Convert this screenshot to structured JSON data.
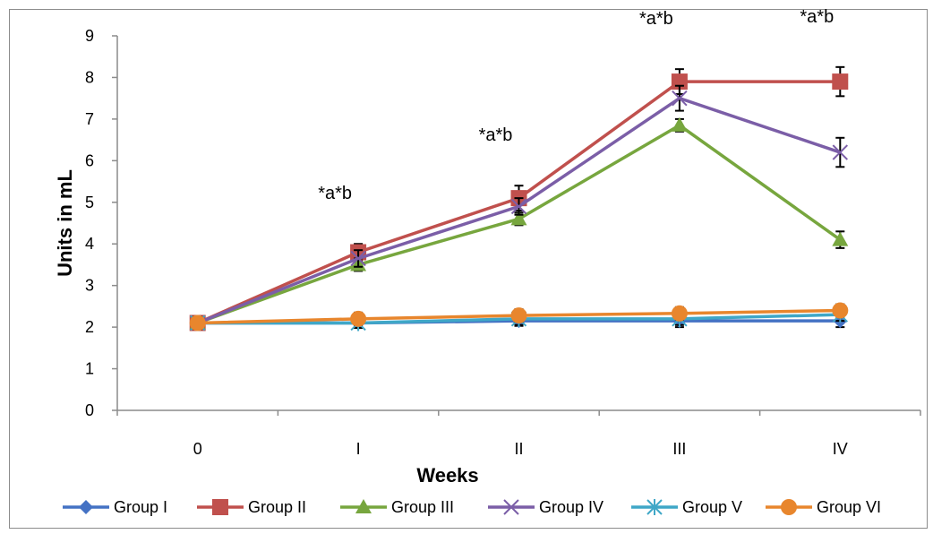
{
  "chart_data": {
    "type": "line",
    "categories": [
      "0",
      "I",
      "II",
      "III",
      "IV"
    ],
    "xlabel": "Weeks",
    "ylabel": "Units in mL",
    "ylim": [
      0,
      9
    ],
    "yticks": [
      "0",
      "1",
      "2",
      "3",
      "4",
      "5",
      "6",
      "7",
      "8",
      "9"
    ],
    "grid": false,
    "legend_position": "bottom",
    "series": [
      {
        "name": "Group I",
        "color": "#4472c4",
        "marker": "diamond",
        "values": [
          2.1,
          2.1,
          2.15,
          2.15,
          2.15
        ],
        "errors": [
          0.15,
          0.1,
          0.12,
          0.15,
          0.15
        ]
      },
      {
        "name": "Group II",
        "color": "#c0504d",
        "marker": "square",
        "values": [
          2.1,
          3.8,
          5.1,
          7.9,
          7.9
        ],
        "errors": [
          0.15,
          0.2,
          0.3,
          0.3,
          0.35
        ]
      },
      {
        "name": "Group III",
        "color": "#77a63e",
        "marker": "triangle",
        "values": [
          2.1,
          3.5,
          4.6,
          6.85,
          4.1
        ],
        "errors": [
          0.15,
          0.15,
          0.15,
          0.15,
          0.2
        ]
      },
      {
        "name": "Group IV",
        "color": "#7b5ea7",
        "marker": "x",
        "values": [
          2.1,
          3.65,
          4.9,
          7.5,
          6.2
        ],
        "errors": [
          0.15,
          0.2,
          0.2,
          0.3,
          0.35
        ]
      },
      {
        "name": "Group V",
        "color": "#3fa7c7",
        "marker": "star",
        "values": [
          2.1,
          2.1,
          2.2,
          2.2,
          2.3
        ],
        "errors": [
          0.15,
          0.12,
          0.15,
          0.15,
          0.15
        ]
      },
      {
        "name": "Group VI",
        "color": "#e8862d",
        "marker": "circle",
        "values": [
          2.1,
          2.2,
          2.28,
          2.33,
          2.4
        ],
        "errors": [
          0.15,
          0.15,
          0.15,
          0.15,
          0.15
        ]
      }
    ],
    "annotations": [
      {
        "category": "I",
        "text": "*a*b"
      },
      {
        "category": "II",
        "text": "*a*b"
      },
      {
        "category": "III",
        "text": "*a*b"
      },
      {
        "category": "IV",
        "text": "*a*b"
      }
    ]
  }
}
